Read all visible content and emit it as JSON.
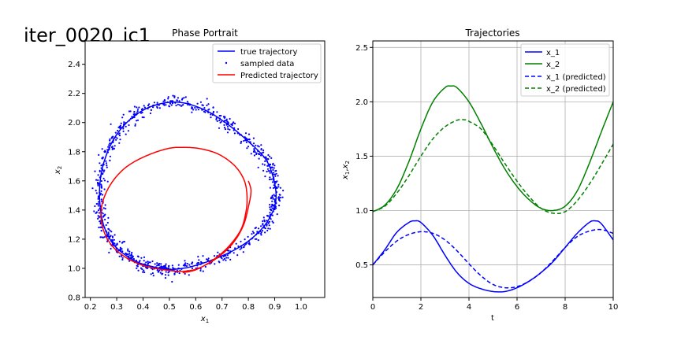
{
  "figure": {
    "suptitle": "iter_0020_ic1"
  },
  "chart_data": [
    {
      "type": "line",
      "title": "Phase Portrait",
      "xlabel": "x",
      "xlabel_sub": "1",
      "ylabel": "x",
      "ylabel_sub": "2",
      "xlim": [
        0.18,
        1.09
      ],
      "ylim": [
        0.8,
        2.56
      ],
      "xticks": [
        0.2,
        0.3,
        0.4,
        0.5,
        0.6,
        0.7,
        0.8,
        0.9,
        1.0
      ],
      "xtick_labels": [
        "0.2",
        "0.3",
        "0.4",
        "0.5",
        "0.6",
        "0.7",
        "0.8",
        "0.9",
        "1.0"
      ],
      "yticks": [
        0.8,
        1.0,
        1.2,
        1.4,
        1.6,
        1.8,
        2.0,
        2.2,
        2.4
      ],
      "ytick_labels": [
        "0.8",
        "1.0",
        "1.2",
        "1.4",
        "1.6",
        "1.8",
        "2.0",
        "2.2",
        "2.4"
      ],
      "grid": false,
      "legend_position": "top-right",
      "series": [
        {
          "name": "true trajectory",
          "style": "line",
          "color": "#0000ff",
          "points": [
            [
              0.5,
              0.99
            ],
            [
              0.58,
              1.01
            ],
            [
              0.68,
              1.07
            ],
            [
              0.77,
              1.15
            ],
            [
              0.84,
              1.25
            ],
            [
              0.885,
              1.36
            ],
            [
              0.905,
              1.48
            ],
            [
              0.895,
              1.62
            ],
            [
              0.865,
              1.75
            ],
            [
              0.8,
              1.87
            ],
            [
              0.72,
              1.99
            ],
            [
              0.63,
              2.09
            ],
            [
              0.53,
              2.14
            ],
            [
              0.43,
              2.11
            ],
            [
              0.35,
              2.02
            ],
            [
              0.29,
              1.89
            ],
            [
              0.25,
              1.72
            ],
            [
              0.235,
              1.55
            ],
            [
              0.24,
              1.38
            ],
            [
              0.26,
              1.25
            ],
            [
              0.3,
              1.14
            ],
            [
              0.37,
              1.05
            ],
            [
              0.44,
              1.01
            ],
            [
              0.5,
              0.99
            ]
          ]
        },
        {
          "name": "sampled data",
          "style": "scatter",
          "color": "#0000ff",
          "noise": 0.012,
          "count": 900
        },
        {
          "name": "Predicted trajectory",
          "style": "line",
          "color": "#ff0000",
          "points": [
            [
              0.8,
              1.6
            ],
            [
              0.81,
              1.53
            ],
            [
              0.8,
              1.42
            ],
            [
              0.78,
              1.29
            ],
            [
              0.74,
              1.17
            ],
            [
              0.68,
              1.07
            ],
            [
              0.61,
              1.0
            ],
            [
              0.55,
              0.98
            ],
            [
              0.48,
              0.99
            ],
            [
              0.4,
              1.02
            ],
            [
              0.33,
              1.08
            ],
            [
              0.28,
              1.16
            ],
            [
              0.25,
              1.26
            ],
            [
              0.24,
              1.38
            ],
            [
              0.255,
              1.5
            ],
            [
              0.29,
              1.61
            ],
            [
              0.34,
              1.7
            ],
            [
              0.41,
              1.77
            ],
            [
              0.49,
              1.82
            ],
            [
              0.55,
              1.83
            ],
            [
              0.62,
              1.82
            ],
            [
              0.69,
              1.78
            ],
            [
              0.75,
              1.7
            ],
            [
              0.785,
              1.6
            ],
            [
              0.795,
              1.49
            ],
            [
              0.79,
              1.38
            ],
            [
              0.77,
              1.26
            ],
            [
              0.72,
              1.14
            ],
            [
              0.66,
              1.05
            ],
            [
              0.6,
              0.99
            ],
            [
              0.55,
              0.97
            ]
          ]
        }
      ]
    },
    {
      "type": "line",
      "title": "Trajectories",
      "xlabel": "t",
      "ylabel": "x",
      "ylabel_subs": [
        "1",
        "2"
      ],
      "xlim": [
        0,
        10
      ],
      "ylim": [
        0.2,
        2.56
      ],
      "xticks": [
        0,
        2,
        4,
        6,
        8,
        10
      ],
      "xtick_labels": [
        "0",
        "2",
        "4",
        "6",
        "8",
        "10"
      ],
      "yticks": [
        0.5,
        1.0,
        1.5,
        2.0,
        2.5
      ],
      "ytick_labels": [
        "0.5",
        "1.0",
        "1.5",
        "2.0",
        "2.5"
      ],
      "grid": true,
      "legend_position": "top-right",
      "series": [
        {
          "name": "x_1",
          "color": "#0000ff",
          "dash": false,
          "x": [
            0,
            0.5,
            1,
            1.5,
            1.75,
            2,
            2.5,
            3,
            3.5,
            4,
            4.5,
            5,
            5.5,
            6,
            6.5,
            7,
            7.5,
            8,
            8.5,
            9,
            9.25,
            9.5,
            10
          ],
          "y": [
            0.5,
            0.64,
            0.8,
            0.89,
            0.905,
            0.89,
            0.77,
            0.59,
            0.43,
            0.33,
            0.28,
            0.255,
            0.255,
            0.29,
            0.35,
            0.43,
            0.53,
            0.66,
            0.79,
            0.89,
            0.905,
            0.88,
            0.73
          ]
        },
        {
          "name": "x_2",
          "color": "#008000",
          "dash": false,
          "x": [
            0,
            0.5,
            1,
            1.5,
            2,
            2.5,
            3,
            3.25,
            3.5,
            4,
            4.5,
            5,
            5.5,
            6,
            6.5,
            7,
            7.5,
            8,
            8.5,
            9,
            9.5,
            10
          ],
          "y": [
            0.99,
            1.05,
            1.2,
            1.45,
            1.75,
            2.0,
            2.13,
            2.145,
            2.13,
            2.0,
            1.8,
            1.58,
            1.38,
            1.22,
            1.1,
            1.02,
            1.0,
            1.04,
            1.18,
            1.43,
            1.72,
            2.0
          ]
        },
        {
          "name": "x_1 (predicted)",
          "color": "#0000ff",
          "dash": true,
          "x": [
            0,
            0.5,
            1,
            1.5,
            2,
            2.5,
            3,
            3.5,
            4,
            4.5,
            5,
            5.5,
            6,
            6.5,
            7,
            7.5,
            8,
            8.5,
            9,
            9.5,
            10
          ],
          "y": [
            0.5,
            0.62,
            0.72,
            0.78,
            0.805,
            0.79,
            0.73,
            0.63,
            0.51,
            0.4,
            0.32,
            0.29,
            0.3,
            0.35,
            0.43,
            0.54,
            0.66,
            0.76,
            0.81,
            0.825,
            0.79
          ]
        },
        {
          "name": "x_2 (predicted)",
          "color": "#008000",
          "dash": true,
          "x": [
            0,
            0.5,
            1,
            1.5,
            2,
            2.5,
            3,
            3.5,
            3.8,
            4,
            4.5,
            5,
            5.5,
            6,
            6.5,
            7,
            7.5,
            8,
            8.5,
            9,
            9.5,
            10
          ],
          "y": [
            0.99,
            1.04,
            1.16,
            1.32,
            1.5,
            1.66,
            1.77,
            1.83,
            1.835,
            1.82,
            1.75,
            1.6,
            1.43,
            1.27,
            1.13,
            1.02,
            0.975,
            0.99,
            1.09,
            1.24,
            1.42,
            1.61
          ]
        }
      ]
    }
  ]
}
